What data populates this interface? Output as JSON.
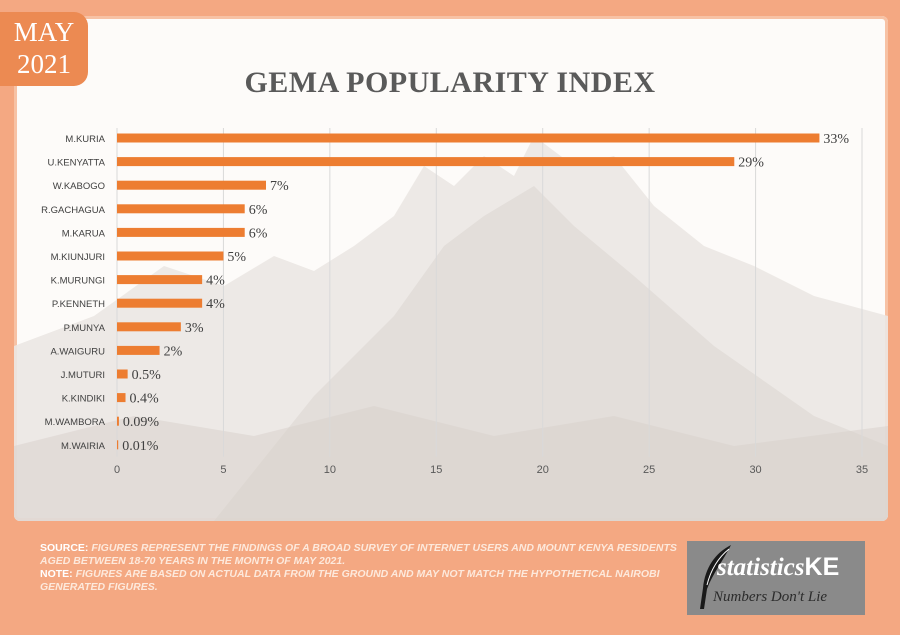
{
  "badge": {
    "month": "MAY",
    "year": "2021"
  },
  "chart_data": {
    "type": "bar",
    "orientation": "horizontal",
    "title": "GEMA POPULARITY INDEX",
    "categories": [
      "M.KURIA",
      "U.KENYATTA",
      "W.KABOGO",
      "R.GACHAGUA",
      "M.KARUA",
      "M.KIUNJURI",
      "K.MURUNGI",
      "P.KENNETH",
      "P.MUNYA",
      "A.WAIGURU",
      "J.MUTURI",
      "K.KINDIKI",
      "M.WAMBORA",
      "M.WAIRIA"
    ],
    "values": [
      33,
      29,
      7,
      6,
      6,
      5,
      4,
      4,
      3,
      2,
      0.5,
      0.4,
      0.09,
      0.01
    ],
    "data_labels": [
      "33%",
      "29%",
      "7%",
      "6%",
      "6%",
      "5%",
      "4%",
      "4%",
      "3%",
      "2%",
      "0.5%",
      "0.4%",
      "0.09%",
      "0.01%"
    ],
    "xlim": [
      0,
      35
    ],
    "xticks": [
      0,
      5,
      10,
      15,
      20,
      25,
      30,
      35
    ],
    "grid": true,
    "bar_color": "#ed7d31"
  },
  "footer": {
    "source_label": "SOURCE:",
    "source_text": "FIGURES REPRESENT THE FINDINGS OF A BROAD SURVEY OF INTERNET USERS AND MOUNT KENYA RESIDENTS  AGED BETWEEN 18-70 YEARS IN THE MONTH OF MAY 2021.",
    "note_label": "NOTE:",
    "note_text": "FIGURES ARE BASED ON ACTUAL DATA FROM THE GROUND AND MAY NOT MATCH THE HYPOTHETICAL NAIROBI GENERATED FIGURES."
  },
  "logo": {
    "brand": "statistics",
    "brand_suffix": "KE",
    "tagline": "Numbers Don't Lie",
    "icon": "quill-pen-icon"
  },
  "colors": {
    "frame": "#f4a882",
    "badge": "#ec8a52",
    "bar": "#ed7d31",
    "logo_bg": "#8a8a8a"
  }
}
